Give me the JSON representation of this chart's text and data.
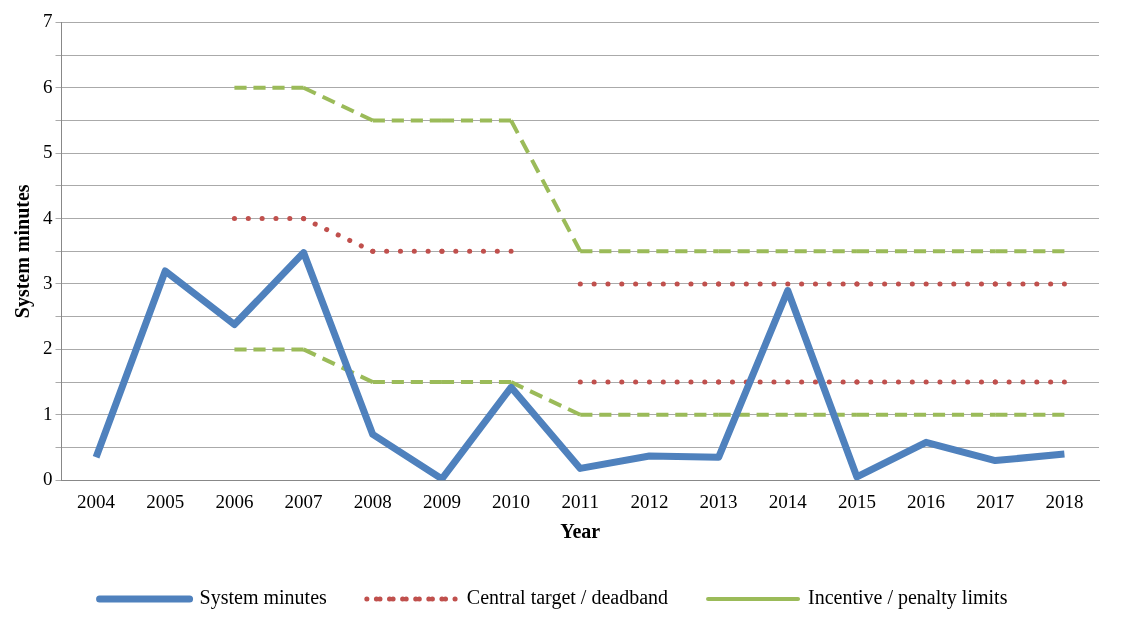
{
  "chart_data": {
    "type": "line",
    "xlabel": "Year",
    "ylabel": "System minutes",
    "categories": [
      "2004",
      "2005",
      "2006",
      "2007",
      "2008",
      "2009",
      "2010",
      "2011",
      "2012",
      "2013",
      "2014",
      "2015",
      "2016",
      "2017",
      "2018"
    ],
    "series": [
      {
        "name": "System minutes",
        "color": "#4f81bd",
        "line_style": "solid",
        "values": [
          0.35,
          3.2,
          2.38,
          3.48,
          0.7,
          0.02,
          1.42,
          0.18,
          0.37,
          0.35,
          2.9,
          0.05,
          0.58,
          0.3,
          0.4
        ]
      },
      {
        "name": "Central target / deadband",
        "color": "#c0504d",
        "line_style": "dotted",
        "values": [
          null,
          null,
          4,
          4,
          3.5,
          3.5,
          3.5,
          null,
          null,
          null,
          null,
          null,
          null,
          null,
          null
        ]
      },
      {
        "color": "#c0504d",
        "line_style": "dotted",
        "values": [
          null,
          null,
          null,
          null,
          null,
          null,
          null,
          3,
          3,
          3,
          3,
          3,
          3,
          3,
          3
        ]
      },
      {
        "color": "#c0504d",
        "line_style": "dotted",
        "values": [
          null,
          null,
          null,
          null,
          null,
          null,
          null,
          1.5,
          1.5,
          1.5,
          1.5,
          1.5,
          1.5,
          1.5,
          1.5
        ]
      },
      {
        "name": "Incentive / penalty limits",
        "color": "#9bbb59",
        "line_style": "dashed",
        "values": [
          null,
          null,
          6,
          6,
          5.5,
          5.5,
          5.5,
          3.5,
          3.5,
          3.5,
          3.5,
          3.5,
          3.5,
          3.5,
          3.5
        ]
      },
      {
        "color": "#9bbb59",
        "line_style": "dashed",
        "values": [
          null,
          null,
          2,
          2,
          1.5,
          1.5,
          1.5,
          1,
          1,
          1,
          1,
          1,
          1,
          1,
          1
        ]
      }
    ],
    "ylim": [
      0,
      7
    ],
    "yticks": [
      0,
      {
        "value": 0.5,
        "label": null
      },
      1,
      {
        "value": 1.5,
        "label": null
      },
      2,
      {
        "value": 2.5,
        "label": null
      },
      3,
      {
        "value": 3.5,
        "label": null
      },
      4,
      {
        "value": 4.5,
        "label": null
      },
      5,
      {
        "value": 5.5,
        "label": null
      },
      6,
      {
        "value": 6.5,
        "label": null
      },
      7
    ],
    "grid": "y",
    "legend": "bottom",
    "marker": "none"
  }
}
